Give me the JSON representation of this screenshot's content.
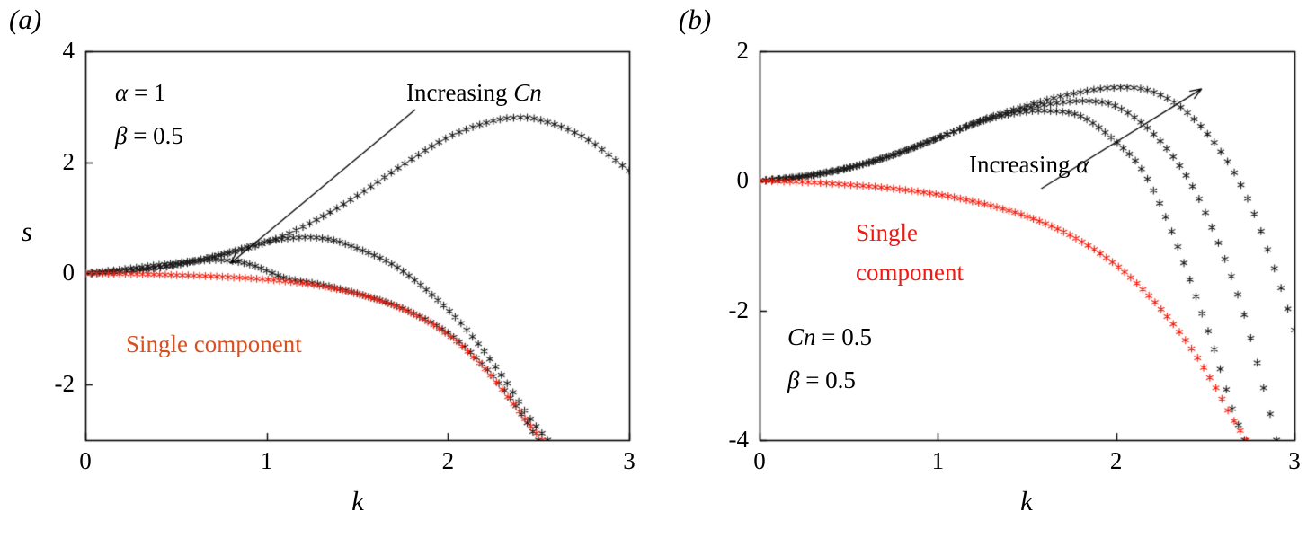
{
  "colors": {
    "background": "#ffffff",
    "axis": "#000000",
    "curve_black": "#1a1a1a",
    "curve_red_a": "#ee2212",
    "curve_red_b": "#f81808",
    "single_component_text_a": "#d9501e",
    "single_component_text_b": "#f21810"
  },
  "chart_data": [
    {
      "type": "scatter",
      "panel_label": "(a)",
      "xlabel": "k",
      "ylabel": "s",
      "xlim": [
        0,
        3
      ],
      "ylim": [
        -3,
        4
      ],
      "xticks": [
        0,
        1,
        2,
        3
      ],
      "yticks": [
        -2,
        0,
        2,
        4
      ],
      "marker": "*",
      "grid": false,
      "annotations": {
        "alpha": {
          "symbol": "α",
          "rest": " = 1"
        },
        "beta": {
          "symbol": "β",
          "rest": " = 0.5"
        },
        "increasing": {
          "prefix": "Increasing ",
          "symbol": "Cn"
        },
        "single_component": "Single component",
        "arrow": {
          "from_k": 1.82,
          "from_s": 2.95,
          "to_k": 0.8,
          "to_s": 0.18
        }
      },
      "series": [
        {
          "name": "two-component, smallest Cn",
          "color": "#1a1a1a",
          "x": [
            0,
            0.25,
            0.5,
            0.75,
            1.0,
            1.25,
            1.5,
            1.75,
            2.0,
            2.2,
            2.35,
            2.5,
            2.75,
            3.0
          ],
          "y": [
            0,
            0.05,
            0.15,
            0.33,
            0.56,
            0.92,
            1.4,
            1.95,
            2.45,
            2.7,
            2.8,
            2.77,
            2.45,
            1.85
          ]
        },
        {
          "name": "two-component, middle Cn",
          "color": "#1a1a1a",
          "x": [
            0,
            0.25,
            0.5,
            0.75,
            1.0,
            1.2,
            1.35,
            1.5,
            1.7,
            1.9,
            2.1,
            2.3,
            2.45,
            2.55
          ],
          "y": [
            0,
            0.05,
            0.16,
            0.34,
            0.57,
            0.65,
            0.61,
            0.45,
            0.15,
            -0.35,
            -1.0,
            -1.85,
            -2.6,
            -3.0
          ]
        },
        {
          "name": "two-component, largest Cn",
          "color": "#1a1a1a",
          "x": [
            0,
            0.2,
            0.4,
            0.6,
            0.75,
            0.9,
            1.0,
            1.1,
            1.3,
            1.5,
            1.75,
            2.0,
            2.2,
            2.35,
            2.5
          ],
          "y": [
            0,
            0.07,
            0.15,
            0.22,
            0.24,
            0.17,
            0.05,
            -0.08,
            -0.2,
            -0.36,
            -0.63,
            -1.07,
            -1.67,
            -2.27,
            -3.0
          ]
        },
        {
          "name": "single component",
          "color": "#ee2212",
          "x": [
            0,
            0.25,
            0.5,
            0.75,
            1.0,
            1.25,
            1.5,
            1.75,
            2.0,
            2.2,
            2.35,
            2.45,
            2.52
          ],
          "y": [
            0,
            -0.01,
            -0.03,
            -0.06,
            -0.11,
            -0.2,
            -0.37,
            -0.64,
            -1.1,
            -1.7,
            -2.3,
            -2.72,
            -3.0
          ]
        }
      ]
    },
    {
      "type": "scatter",
      "panel_label": "(b)",
      "xlabel": "k",
      "ylabel": "",
      "xlim": [
        0,
        3
      ],
      "ylim": [
        -4,
        2
      ],
      "xticks": [
        0,
        1,
        2,
        3
      ],
      "yticks": [
        -4,
        -2,
        0,
        2
      ],
      "marker": "*",
      "grid": false,
      "annotations": {
        "cn": {
          "symbol": "Cn",
          "rest": " = 0.5"
        },
        "beta": {
          "symbol": "β",
          "rest": " = 0.5"
        },
        "increasing": {
          "prefix": "Increasing ",
          "symbol": "α"
        },
        "single_component_line1": "Single",
        "single_component_line2": "component",
        "arrow": {
          "from_k": 1.58,
          "from_s": -0.12,
          "to_k": 2.48,
          "to_s": 1.42
        }
      },
      "series": [
        {
          "name": "two-component, smallest α",
          "color": "#1a1a1a",
          "x": [
            0,
            0.25,
            0.5,
            0.75,
            1.0,
            1.25,
            1.45,
            1.6,
            1.8,
            2.0,
            2.15,
            2.3,
            2.45,
            2.55,
            2.65,
            2.72
          ],
          "y": [
            0,
            0.07,
            0.2,
            0.4,
            0.66,
            0.92,
            1.05,
            1.08,
            1.0,
            0.6,
            0.15,
            -0.7,
            -1.8,
            -2.6,
            -3.5,
            -4.0
          ]
        },
        {
          "name": "two-component, middle α",
          "color": "#1a1a1a",
          "x": [
            0,
            0.25,
            0.5,
            0.75,
            1.0,
            1.25,
            1.5,
            1.7,
            1.85,
            2.0,
            2.2,
            2.4,
            2.55,
            2.7,
            2.8,
            2.9
          ],
          "y": [
            0,
            0.07,
            0.2,
            0.4,
            0.66,
            0.93,
            1.12,
            1.21,
            1.23,
            1.15,
            0.75,
            0.05,
            -0.8,
            -1.9,
            -2.9,
            -4.0
          ]
        },
        {
          "name": "two-component, largest α",
          "color": "#1a1a1a",
          "x": [
            0,
            0.25,
            0.5,
            0.75,
            1.0,
            1.25,
            1.5,
            1.75,
            2.0,
            2.2,
            2.4,
            2.6,
            2.75,
            2.9,
            3.0
          ],
          "y": [
            0,
            0.07,
            0.2,
            0.4,
            0.66,
            0.94,
            1.16,
            1.34,
            1.44,
            1.38,
            1.05,
            0.4,
            -0.35,
            -1.45,
            -2.3
          ]
        },
        {
          "name": "single component",
          "color": "#f81808",
          "x": [
            0,
            0.25,
            0.5,
            0.75,
            1.0,
            1.25,
            1.5,
            1.75,
            2.0,
            2.2,
            2.4,
            2.55,
            2.65,
            2.73
          ],
          "y": [
            0,
            -0.02,
            -0.06,
            -0.12,
            -0.21,
            -0.35,
            -0.55,
            -0.85,
            -1.3,
            -1.82,
            -2.5,
            -3.15,
            -3.65,
            -4.0
          ]
        }
      ]
    }
  ]
}
